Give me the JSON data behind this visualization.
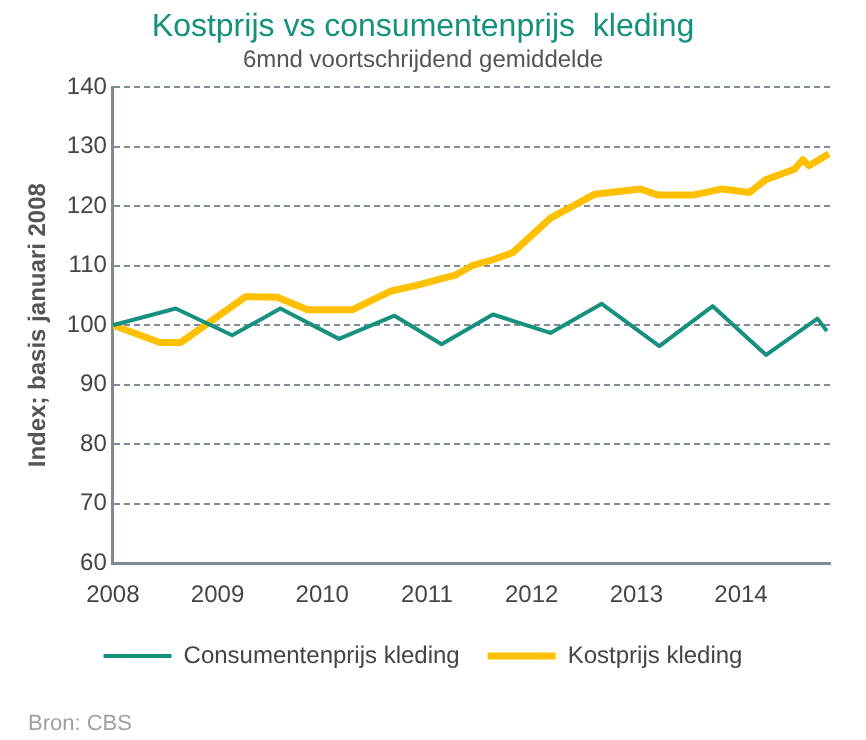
{
  "chart_data": {
    "type": "line",
    "title": "Kostprijs vs consumentenprijs  kleding",
    "subtitle": "6mnd voortschrijdend gemiddelde",
    "ylabel": "Index; basis januari 2008",
    "annotations": [
      "Bron: CBS"
    ],
    "series": [
      {
        "name": "Consumentenprijs kleding",
        "color": "#16917e",
        "x": [
          2008,
          2008.6,
          2009.14,
          2009.6,
          2010.16,
          2010.69,
          2011.14,
          2011.63,
          2012.18,
          2012.67,
          2013.22,
          2013.73,
          2014.24,
          2014.73,
          2014.82
        ],
        "values": [
          100,
          102.8,
          98.3,
          102.8,
          97.7,
          101.6,
          96.8,
          101.8,
          98.7,
          103.6,
          96.5,
          103.2,
          95,
          101.1,
          99
        ]
      },
      {
        "name": "Kostprijs kleding",
        "color": "#ffc000",
        "x": [
          2008,
          2008.45,
          2008.65,
          2009.27,
          2009.57,
          2009.86,
          2010.29,
          2010.65,
          2010.9,
          2011.27,
          2011.43,
          2011.63,
          2011.82,
          2012.18,
          2012.6,
          2013.04,
          2013.2,
          2013.55,
          2013.82,
          2014.08,
          2014.24,
          2014.51,
          2014.59,
          2014.65,
          2014.84
        ],
        "values": [
          100,
          97.1,
          97.1,
          104.8,
          104.7,
          102.6,
          102.6,
          105.7,
          106.7,
          108.4,
          110,
          111,
          112.2,
          118,
          122,
          122.9,
          121.9,
          121.9,
          122.9,
          122.3,
          124.5,
          126.2,
          127.8,
          126.8,
          128.8
        ]
      }
    ],
    "xlim": [
      2008,
      2014.85
    ],
    "xticks": [
      2008,
      2009,
      2010,
      2011,
      2012,
      2013,
      2014
    ],
    "ylim": [
      60,
      140
    ],
    "yticks": [
      60,
      70,
      80,
      90,
      100,
      110,
      120,
      130,
      140
    ],
    "grid": "y",
    "legend": "bottom",
    "marker": "none",
    "line_style": "solid"
  }
}
